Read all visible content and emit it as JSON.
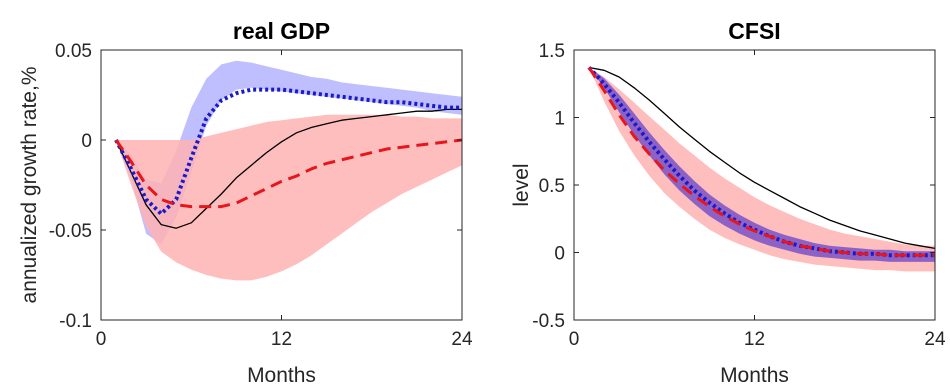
{
  "chart_data": [
    {
      "type": "line",
      "title": "real GDP",
      "xlabel": "Months",
      "ylabel": "annualized growth rate,%",
      "xlim": [
        0,
        24
      ],
      "ylim": [
        -0.1,
        0.05
      ],
      "xticks": [
        "0",
        "12",
        "24"
      ],
      "yticks": [
        "-0.1",
        "-0.05",
        "0",
        "0.05"
      ],
      "grid": false,
      "x": [
        1,
        2,
        3,
        4,
        5,
        6,
        7,
        8,
        9,
        10,
        11,
        12,
        13,
        14,
        15,
        16,
        17,
        18,
        19,
        20,
        21,
        22,
        23,
        24
      ],
      "bands": [
        {
          "color": "#b4b4ff",
          "lower": [
            0,
            -0.022,
            -0.052,
            -0.058,
            -0.043,
            -0.018,
            0.008,
            0.022,
            0.028,
            0.029,
            0.028,
            0.027,
            0.026,
            0.025,
            0.024,
            0.023,
            0.022,
            0.021,
            0.02,
            0.019,
            0.018,
            0.016,
            0.015,
            0.014
          ],
          "upper": [
            0,
            -0.008,
            -0.022,
            -0.024,
            -0.006,
            0.018,
            0.034,
            0.042,
            0.044,
            0.043,
            0.041,
            0.039,
            0.037,
            0.035,
            0.034,
            0.032,
            0.031,
            0.03,
            0.029,
            0.028,
            0.027,
            0.026,
            0.025,
            0.024
          ]
        },
        {
          "color": "#ffb3b3",
          "lower": [
            0,
            -0.025,
            -0.048,
            -0.062,
            -0.068,
            -0.072,
            -0.075,
            -0.077,
            -0.078,
            -0.078,
            -0.076,
            -0.073,
            -0.069,
            -0.064,
            -0.058,
            -0.052,
            -0.046,
            -0.04,
            -0.035,
            -0.03,
            -0.026,
            -0.022,
            -0.018,
            -0.014
          ],
          "upper": [
            0,
            0,
            0,
            0,
            0,
            0,
            0.002,
            0.004,
            0.006,
            0.008,
            0.01,
            0.011,
            0.012,
            0.013,
            0.014,
            0.014,
            0.014,
            0.014,
            0.014,
            0.013,
            0.013,
            0.012,
            0.012,
            0.012
          ]
        }
      ],
      "series": [
        {
          "style": "solid",
          "color": "#000000",
          "values": [
            0,
            -0.018,
            -0.036,
            -0.047,
            -0.049,
            -0.046,
            -0.038,
            -0.03,
            -0.021,
            -0.014,
            -0.007,
            -0.001,
            0.004,
            0.007,
            0.009,
            0.011,
            0.012,
            0.013,
            0.014,
            0.015,
            0.016,
            0.016,
            0.017,
            0.017
          ]
        },
        {
          "style": "dotted",
          "color": "#1a1acc",
          "values": [
            0,
            -0.016,
            -0.033,
            -0.041,
            -0.033,
            -0.01,
            0.012,
            0.022,
            0.026,
            0.028,
            0.028,
            0.028,
            0.027,
            0.026,
            0.025,
            0.024,
            0.023,
            0.022,
            0.021,
            0.021,
            0.02,
            0.019,
            0.018,
            0.018
          ]
        },
        {
          "style": "dashed",
          "color": "#e6161c",
          "values": [
            0,
            -0.012,
            -0.025,
            -0.033,
            -0.036,
            -0.037,
            -0.037,
            -0.037,
            -0.035,
            -0.031,
            -0.027,
            -0.023,
            -0.02,
            -0.016,
            -0.013,
            -0.011,
            -0.009,
            -0.007,
            -0.005,
            -0.004,
            -0.003,
            -0.002,
            -0.001,
            0
          ]
        }
      ]
    },
    {
      "type": "line",
      "title": "CFSI",
      "xlabel": "Months",
      "ylabel": "level",
      "xlim": [
        0,
        24
      ],
      "ylim": [
        -0.5,
        1.5
      ],
      "xticks": [
        "0",
        "12",
        "24"
      ],
      "yticks": [
        "-0.5",
        "0",
        "0.5",
        "1",
        "1.5"
      ],
      "grid": false,
      "x": [
        1,
        2,
        3,
        4,
        5,
        6,
        7,
        8,
        9,
        10,
        11,
        12,
        13,
        14,
        15,
        16,
        17,
        18,
        19,
        20,
        21,
        22,
        23,
        24
      ],
      "bands": [
        {
          "color": "#ffb3b3",
          "lower": [
            1.37,
            1.12,
            0.9,
            0.72,
            0.57,
            0.44,
            0.34,
            0.25,
            0.17,
            0.11,
            0.06,
            0.02,
            -0.02,
            -0.05,
            -0.07,
            -0.09,
            -0.1,
            -0.11,
            -0.12,
            -0.13,
            -0.13,
            -0.14,
            -0.14,
            -0.14
          ],
          "upper": [
            1.37,
            1.3,
            1.21,
            1.11,
            1.01,
            0.91,
            0.81,
            0.72,
            0.63,
            0.55,
            0.48,
            0.41,
            0.35,
            0.3,
            0.25,
            0.21,
            0.17,
            0.14,
            0.12,
            0.1,
            0.08,
            0.06,
            0.05,
            0.05
          ]
        },
        {
          "color": "#7a52c7",
          "lower": [
            1.37,
            1.22,
            1.04,
            0.87,
            0.72,
            0.58,
            0.46,
            0.36,
            0.27,
            0.2,
            0.14,
            0.09,
            0.05,
            0.02,
            -0.01,
            -0.03,
            -0.04,
            -0.05,
            -0.06,
            -0.06,
            -0.07,
            -0.07,
            -0.07,
            -0.07
          ],
          "upper": [
            1.37,
            1.29,
            1.17,
            1.03,
            0.89,
            0.76,
            0.64,
            0.53,
            0.43,
            0.35,
            0.28,
            0.22,
            0.17,
            0.13,
            0.1,
            0.07,
            0.05,
            0.04,
            0.03,
            0.02,
            0.02,
            0.01,
            0.01,
            0.01
          ]
        }
      ],
      "series": [
        {
          "style": "solid",
          "color": "#000000",
          "values": [
            1.37,
            1.35,
            1.3,
            1.22,
            1.13,
            1.03,
            0.93,
            0.84,
            0.75,
            0.67,
            0.59,
            0.52,
            0.46,
            0.4,
            0.34,
            0.29,
            0.24,
            0.2,
            0.16,
            0.13,
            0.1,
            0.07,
            0.05,
            0.03
          ]
        },
        {
          "style": "dotted",
          "color": "#1a1acc",
          "values": [
            1.37,
            1.25,
            1.11,
            0.96,
            0.82,
            0.69,
            0.57,
            0.46,
            0.37,
            0.29,
            0.22,
            0.17,
            0.12,
            0.08,
            0.05,
            0.03,
            0.01,
            0.0,
            -0.01,
            -0.01,
            -0.02,
            -0.02,
            -0.02,
            -0.02
          ]
        },
        {
          "style": "dashed",
          "color": "#e6161c",
          "values": [
            1.37,
            1.2,
            1.02,
            0.86,
            0.73,
            0.61,
            0.51,
            0.42,
            0.34,
            0.27,
            0.21,
            0.16,
            0.12,
            0.08,
            0.05,
            0.03,
            0.01,
            0.0,
            -0.01,
            -0.01,
            -0.02,
            -0.02,
            -0.02,
            -0.02
          ]
        }
      ]
    }
  ]
}
